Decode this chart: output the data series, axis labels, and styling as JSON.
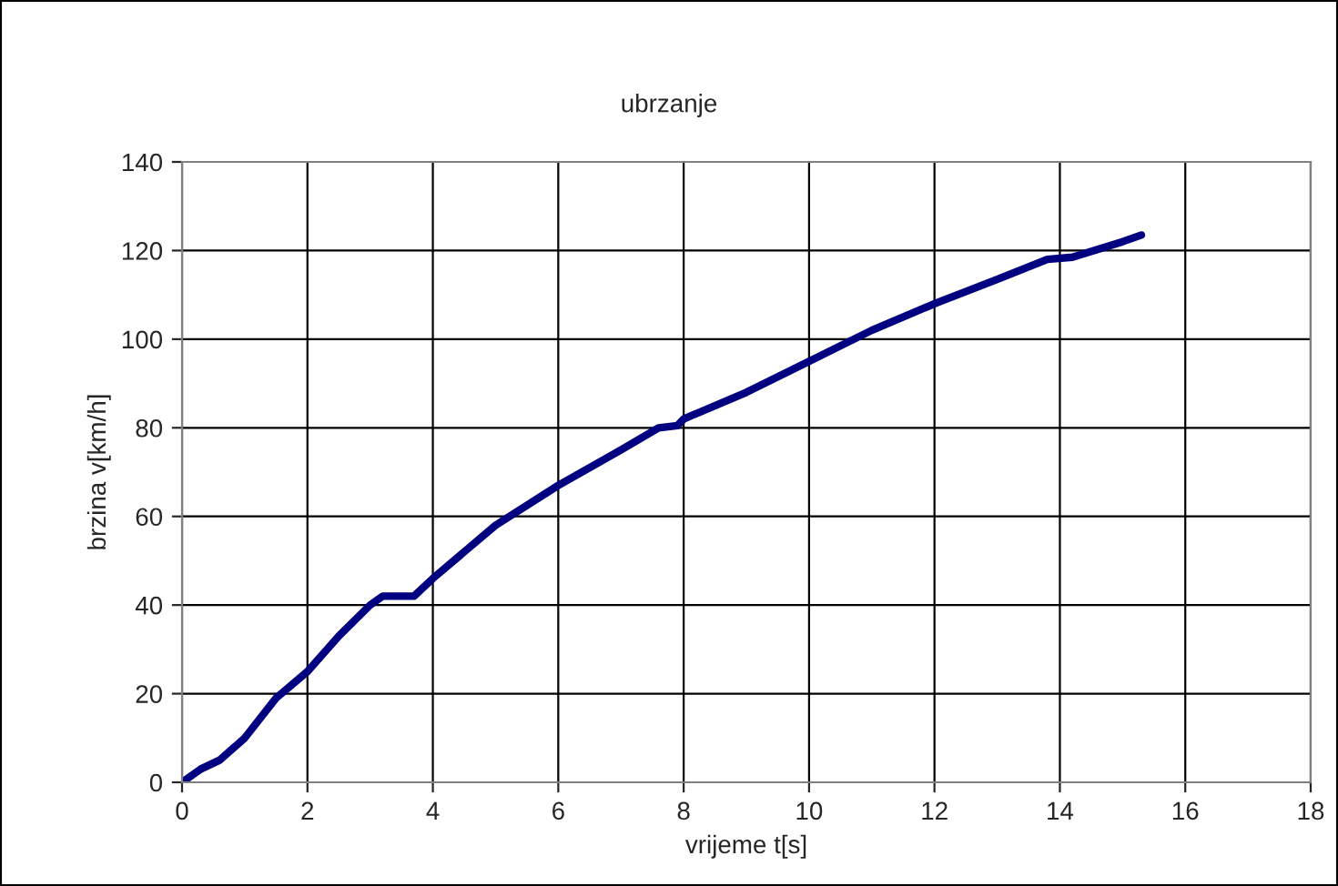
{
  "chart_data": {
    "type": "line",
    "title": "ubrzanje",
    "xlabel": "vrijeme t[s]",
    "ylabel": "brzina v[km/h]",
    "xlim": [
      0,
      18
    ],
    "xticks": [
      0,
      2,
      4,
      6,
      8,
      10,
      12,
      14,
      16,
      18
    ],
    "ylim": [
      0,
      140
    ],
    "yticks": [
      0,
      20,
      40,
      60,
      80,
      100,
      120,
      140
    ],
    "grid": true,
    "marker": "none",
    "line_style": "solid",
    "series": [
      {
        "color": "#000080",
        "x": [
          0,
          0.3,
          0.6,
          1,
          1.5,
          2,
          2.5,
          3,
          3.2,
          3.7,
          4,
          4.5,
          5,
          6,
          7,
          7.6,
          7.9,
          8,
          9,
          10,
          11,
          12,
          13,
          13.8,
          14.2,
          15,
          15.3
        ],
        "values": [
          0,
          3,
          5,
          10,
          19,
          25,
          33,
          40,
          42,
          42,
          46,
          52,
          58,
          67,
          75,
          80,
          80.5,
          82,
          88,
          95,
          102,
          108,
          113.5,
          118,
          118.5,
          122,
          123.5
        ]
      }
    ]
  }
}
